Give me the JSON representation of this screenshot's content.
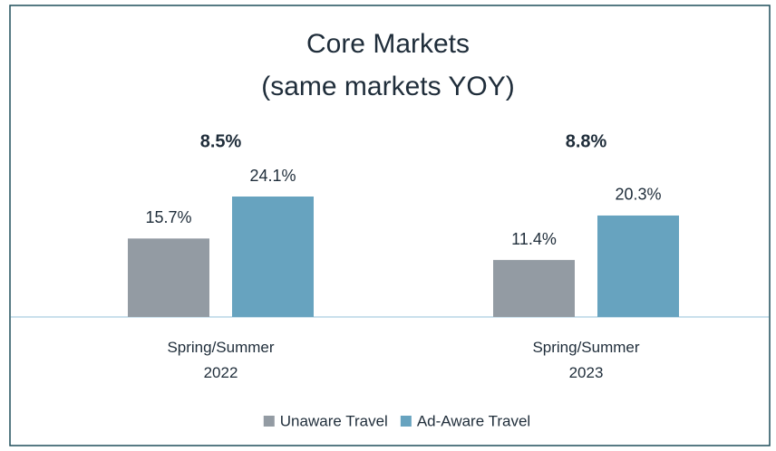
{
  "chart_data": {
    "type": "bar",
    "title": "Core Markets",
    "subtitle": "(same markets YOY)",
    "annotations": [
      "8.5%",
      "8.8%"
    ],
    "categories": [
      "Spring/Summer 2022",
      "Spring/Summer 2023"
    ],
    "series": [
      {
        "name": "Unaware Travel",
        "color": "#939ba3",
        "values": [
          15.7,
          11.4
        ],
        "value_labels": [
          "15.7%",
          "11.4%"
        ]
      },
      {
        "name": "Ad-Aware Travel",
        "color": "#67a3bf",
        "values": [
          24.1,
          20.3
        ],
        "value_labels": [
          "24.1%",
          "20.3%"
        ]
      }
    ],
    "legend": "bottom"
  }
}
